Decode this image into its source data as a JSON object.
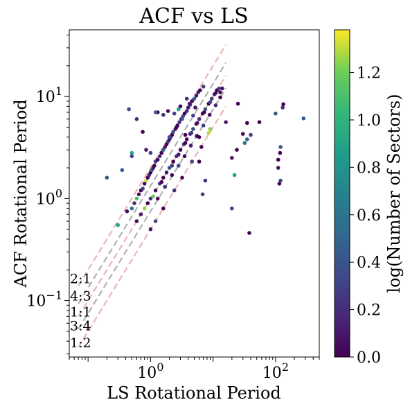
{
  "chart_data": {
    "type": "scatter",
    "title": "ACF vs LS",
    "xlabel": "LS Rotational Period",
    "ylabel": "ACF Rotational Period",
    "xscale": "log",
    "yscale": "log",
    "xlim": [
      0.05,
      500
    ],
    "ylim": [
      0.028,
      45
    ],
    "x_ticks": [
      {
        "value": 1,
        "label": "10^0"
      },
      {
        "value": 100,
        "label": "10^2"
      }
    ],
    "y_ticks": [
      {
        "value": 0.1,
        "label": "10^-1"
      },
      {
        "value": 1,
        "label": "10^0"
      },
      {
        "value": 10,
        "label": "10^1"
      }
    ],
    "colorbar": {
      "label": "log(Number of Sectors)",
      "colormap": "viridis",
      "range": [
        0.0,
        1.38
      ],
      "ticks": [
        "0.0",
        "0.2",
        "0.4",
        "0.6",
        "0.8",
        "1.0",
        "1.2"
      ]
    },
    "ratio_lines": [
      {
        "label": "2:1",
        "ratio": 2.0,
        "color": "#e8b6b0",
        "label_color": "#b03a33",
        "label_y": 0.165
      },
      {
        "label": "4:3",
        "ratio": 1.333,
        "color": "#b0b0b0",
        "label_color": "#222222",
        "label_y": 0.112
      },
      {
        "label": "1:1",
        "ratio": 1.0,
        "color": "#e8b6b0",
        "label_color": "#b03a33",
        "label_y": 0.078
      },
      {
        "label": "3:4",
        "ratio": 0.75,
        "color": "#b0b0b0",
        "label_color": "#222222",
        "label_y": 0.057
      },
      {
        "label": "1:2",
        "ratio": 0.5,
        "color": "#e8b6b0",
        "label_color": "#b03a33",
        "label_y": 0.039
      }
    ],
    "ratio_line_x_range": [
      0.07,
      16
    ],
    "points": [
      [
        0.3,
        0.55,
        0.9
      ],
      [
        0.42,
        0.75,
        0.05
      ],
      [
        0.5,
        0.8,
        0.6
      ],
      [
        0.55,
        0.9,
        0.2
      ],
      [
        0.6,
        1.0,
        1.1
      ],
      [
        0.65,
        1.1,
        0.1
      ],
      [
        0.7,
        1.2,
        0.0
      ],
      [
        0.75,
        1.25,
        0.3
      ],
      [
        0.8,
        1.4,
        0.05
      ],
      [
        0.85,
        1.5,
        1.3
      ],
      [
        0.9,
        1.6,
        0.0
      ],
      [
        0.95,
        1.7,
        0.2
      ],
      [
        1.0,
        1.8,
        0.0
      ],
      [
        1.05,
        1.9,
        0.4
      ],
      [
        1.1,
        2.0,
        0.1
      ],
      [
        1.15,
        2.1,
        0.0
      ],
      [
        1.2,
        2.3,
        0.3
      ],
      [
        1.3,
        2.4,
        0.05
      ],
      [
        1.4,
        2.6,
        0.2
      ],
      [
        1.5,
        2.8,
        0.0
      ],
      [
        1.6,
        3.0,
        0.45
      ],
      [
        1.7,
        3.2,
        0.1
      ],
      [
        1.8,
        3.4,
        0.0
      ],
      [
        1.9,
        3.6,
        0.3
      ],
      [
        2.0,
        3.8,
        0.05
      ],
      [
        2.1,
        4.0,
        0.2
      ],
      [
        2.2,
        4.2,
        0.0
      ],
      [
        2.3,
        4.5,
        0.35
      ],
      [
        2.5,
        4.8,
        0.1
      ],
      [
        2.7,
        5.2,
        0.0
      ],
      [
        2.9,
        5.6,
        0.25
      ],
      [
        3.1,
        6.0,
        0.05
      ],
      [
        3.3,
        6.4,
        0.4
      ],
      [
        3.5,
        6.8,
        0.0
      ],
      [
        3.8,
        7.2,
        0.2
      ],
      [
        4.0,
        7.8,
        0.1
      ],
      [
        4.3,
        8.3,
        0.3
      ],
      [
        4.6,
        9.0,
        0.0
      ],
      [
        5.0,
        9.5,
        0.45
      ],
      [
        5.4,
        10.2,
        0.1
      ],
      [
        5.8,
        11.0,
        0.2
      ],
      [
        6.2,
        11.5,
        0.0
      ],
      [
        7.0,
        12.5,
        0.3
      ],
      [
        0.9,
        0.9,
        0.0
      ],
      [
        1.0,
        1.0,
        0.2
      ],
      [
        1.2,
        1.2,
        0.05
      ],
      [
        1.4,
        1.4,
        0.3
      ],
      [
        1.6,
        1.6,
        0.0
      ],
      [
        1.8,
        1.8,
        0.1
      ],
      [
        2.0,
        2.0,
        0.4
      ],
      [
        2.3,
        2.3,
        0.0
      ],
      [
        2.6,
        2.6,
        0.2
      ],
      [
        3.0,
        3.0,
        0.05
      ],
      [
        3.4,
        3.4,
        0.3
      ],
      [
        3.8,
        3.8,
        0.0
      ],
      [
        4.3,
        4.3,
        0.15
      ],
      [
        4.8,
        4.8,
        0.35
      ],
      [
        5.4,
        5.4,
        0.0
      ],
      [
        6.0,
        6.0,
        0.2
      ],
      [
        6.8,
        6.8,
        0.05
      ],
      [
        7.5,
        7.5,
        0.4
      ],
      [
        8.5,
        8.5,
        0.0
      ],
      [
        9.5,
        9.5,
        0.25
      ],
      [
        10.5,
        10.5,
        0.1
      ],
      [
        11.5,
        11.5,
        0.0
      ],
      [
        12.5,
        12.0,
        0.3
      ],
      [
        13.0,
        11.0,
        0.05
      ],
      [
        0.7,
        0.7,
        0.1
      ],
      [
        0.8,
        0.8,
        1.25
      ],
      [
        0.6,
        0.6,
        0.05
      ],
      [
        1.1,
        1.05,
        1.2
      ],
      [
        1.5,
        1.45,
        0.0
      ],
      [
        2.2,
        2.1,
        0.3
      ],
      [
        2.8,
        2.7,
        0.1
      ],
      [
        3.6,
        3.5,
        0.0
      ],
      [
        4.5,
        4.4,
        0.25
      ],
      [
        5.6,
        5.5,
        0.1
      ],
      [
        7.2,
        7.0,
        0.0
      ],
      [
        9.0,
        8.8,
        0.3
      ],
      [
        11.0,
        10.8,
        0.05
      ],
      [
        1.3,
        1.0,
        0.0
      ],
      [
        1.7,
        1.3,
        0.2
      ],
      [
        2.2,
        1.7,
        0.05
      ],
      [
        2.8,
        2.1,
        0.3
      ],
      [
        3.5,
        2.6,
        0.0
      ],
      [
        4.4,
        3.3,
        0.15
      ],
      [
        5.5,
        4.1,
        0.0
      ],
      [
        7.0,
        5.2,
        0.3
      ],
      [
        8.8,
        6.6,
        0.05
      ],
      [
        11.0,
        8.2,
        0.2
      ],
      [
        13.0,
        9.8,
        0.0
      ],
      [
        8.5,
        4.4,
        1.3
      ],
      [
        9.0,
        4.8,
        1.25
      ],
      [
        1.6,
        0.8,
        0.0
      ],
      [
        2.4,
        1.2,
        0.2
      ],
      [
        3.2,
        1.6,
        0.05
      ],
      [
        4.6,
        2.3,
        0.3
      ],
      [
        6.5,
        3.2,
        0.0
      ],
      [
        1.2,
        0.6,
        0.35
      ],
      [
        1.0,
        0.5,
        0.1
      ],
      [
        0.2,
        1.6,
        0.4
      ],
      [
        0.35,
        1.9,
        0.45
      ],
      [
        0.5,
        2.8,
        0.9
      ],
      [
        0.5,
        2.6,
        0.3
      ],
      [
        0.45,
        7.5,
        0.35
      ],
      [
        0.6,
        6.0,
        0.2
      ],
      [
        0.75,
        4.5,
        0.0
      ],
      [
        0.85,
        3.0,
        0.1
      ],
      [
        1.0,
        2.8,
        0.3
      ],
      [
        1.3,
        7.0,
        0.0
      ],
      [
        1.6,
        6.6,
        0.2
      ],
      [
        1.9,
        7.2,
        0.05
      ],
      [
        2.4,
        6.8,
        0.3
      ],
      [
        3.0,
        8.0,
        0.0
      ],
      [
        3.8,
        9.5,
        0.2
      ],
      [
        4.2,
        8.5,
        0.1
      ],
      [
        1.2,
        7.0,
        0.5
      ],
      [
        2.0,
        4.0,
        0.35
      ],
      [
        2.6,
        5.0,
        0.0
      ],
      [
        3.2,
        6.0,
        0.45
      ],
      [
        3.6,
        4.2,
        0.0
      ],
      [
        4.8,
        6.5,
        0.3
      ],
      [
        5.2,
        7.8,
        0.1
      ],
      [
        6.0,
        4.0,
        0.0
      ],
      [
        2.8,
        7.5,
        0.9
      ],
      [
        6.8,
        1.1,
        0.3
      ],
      [
        6.0,
        2.3,
        0.0
      ],
      [
        7.5,
        1.5,
        0.2
      ],
      [
        20.0,
        2.5,
        0.1
      ],
      [
        22.0,
        1.7,
        0.9
      ],
      [
        20.0,
        0.8,
        0.3
      ],
      [
        24.0,
        3.0,
        0.0
      ],
      [
        30.0,
        4.3,
        0.05
      ],
      [
        32.0,
        3.5,
        0.6
      ],
      [
        35.0,
        3.8,
        0.45
      ],
      [
        40.0,
        4.2,
        0.3
      ],
      [
        38.0,
        0.46,
        0.0
      ],
      [
        55.0,
        5.6,
        0.0
      ],
      [
        25.0,
        8.5,
        0.0
      ],
      [
        14.0,
        12.0,
        0.1
      ],
      [
        110.0,
        2.4,
        0.0
      ],
      [
        110.0,
        2.0,
        0.1
      ],
      [
        115.0,
        1.4,
        0.0
      ],
      [
        120.0,
        1.5,
        0.3
      ],
      [
        120.0,
        3.2,
        0.4
      ],
      [
        118.0,
        2.8,
        0.0
      ],
      [
        130.0,
        7.8,
        0.2
      ],
      [
        133.0,
        8.4,
        0.0
      ],
      [
        100.0,
        6.8,
        0.4
      ],
      [
        280.0,
        6.1,
        0.45
      ],
      [
        35.0,
        5.5,
        0.0
      ],
      [
        16.0,
        5.6,
        0.1
      ]
    ]
  }
}
